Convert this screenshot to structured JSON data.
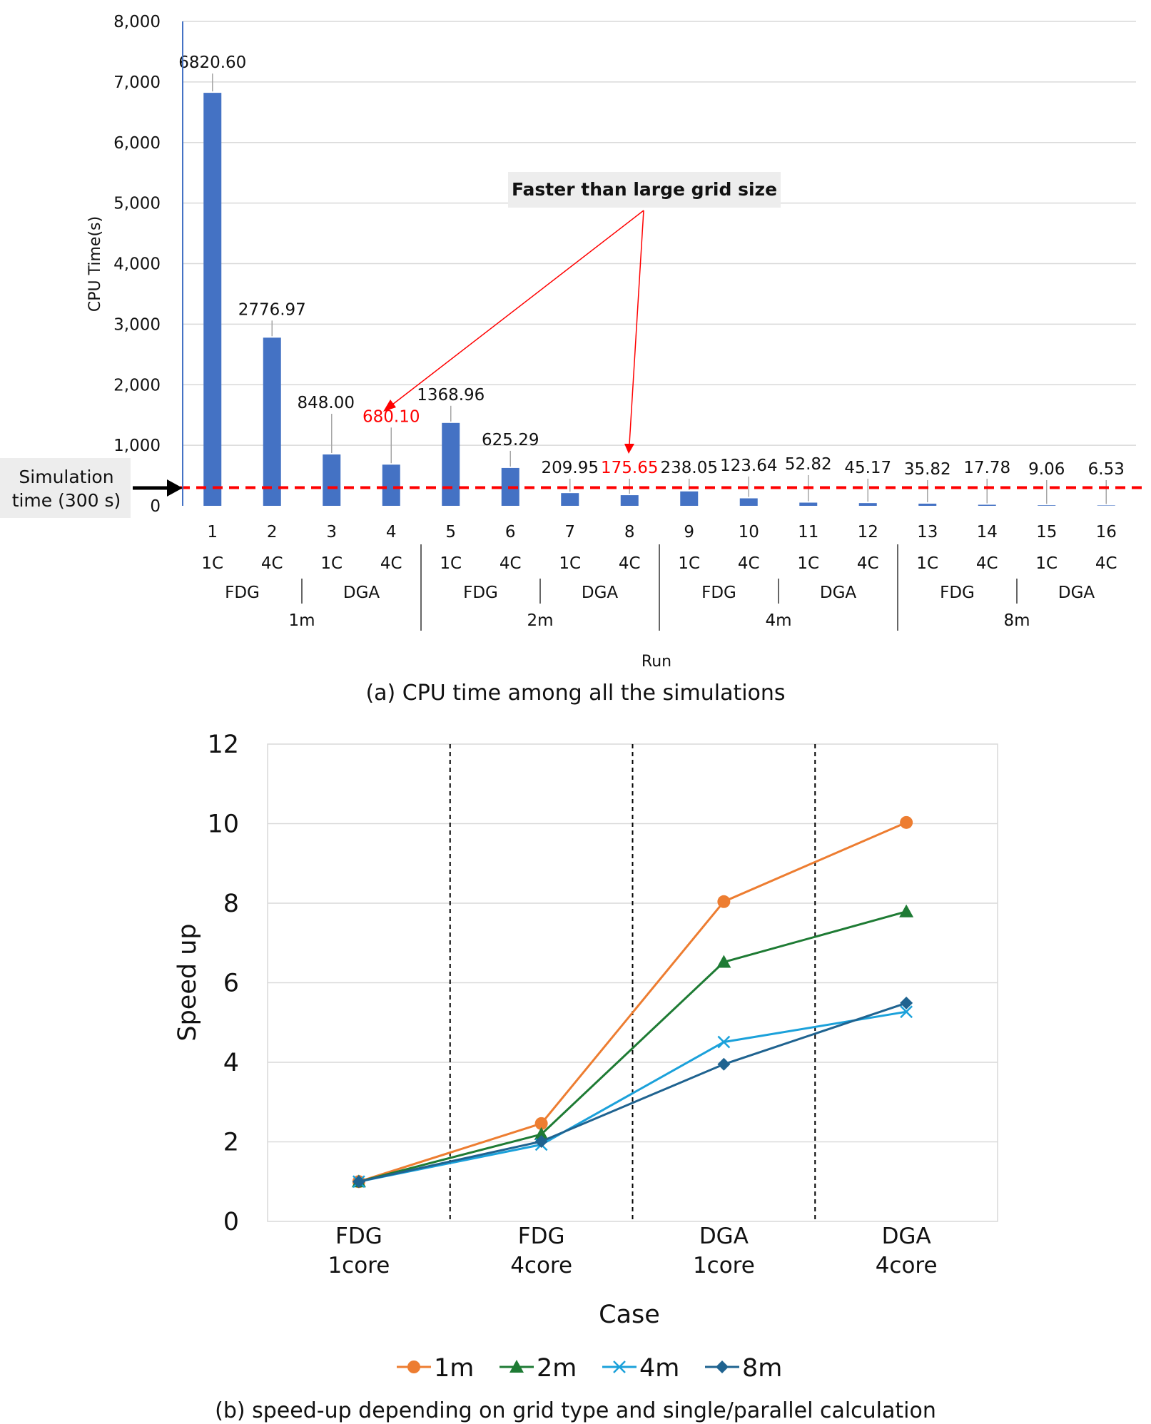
{
  "chart_data": [
    {
      "type": "bar",
      "title": "(a) CPU time among all the simulations",
      "xlabel": "Run",
      "ylabel": "CPU Time(s)",
      "ylim": [
        0,
        8000
      ],
      "yticks": [
        "0",
        "1,000",
        "2,000",
        "3,000",
        "4,000",
        "5,000",
        "6,000",
        "7,000",
        "8,000"
      ],
      "gridlines": true,
      "categories": [
        "1",
        "2",
        "3",
        "4",
        "5",
        "6",
        "7",
        "8",
        "9",
        "10",
        "11",
        "12",
        "13",
        "14",
        "15",
        "16"
      ],
      "cores": [
        "1C",
        "4C",
        "1C",
        "4C",
        "1C",
        "4C",
        "1C",
        "4C",
        "1C",
        "4C",
        "1C",
        "4C",
        "1C",
        "4C",
        "1C",
        "4C"
      ],
      "grid_types": [
        "FDG",
        "DGA",
        "FDG",
        "DGA",
        "FDG",
        "DGA",
        "FDG",
        "DGA"
      ],
      "grid_sizes": [
        "1m",
        "2m",
        "4m",
        "8m"
      ],
      "values": [
        6820.6,
        2776.97,
        848.0,
        680.1,
        1368.96,
        625.29,
        209.95,
        175.65,
        238.05,
        123.64,
        52.82,
        45.17,
        35.82,
        17.78,
        9.06,
        6.53
      ],
      "value_labels": [
        "6820.60",
        "2776.97",
        "848.00",
        "680.10",
        "1368.96",
        "625.29",
        "209.95",
        "175.65",
        "238.05",
        "123.64",
        "52.82",
        "45.17",
        "35.82",
        "17.78",
        "9.06",
        "6.53"
      ],
      "highlighted_runs": [
        "4",
        "8"
      ],
      "reference_line": {
        "value": 300,
        "label_line1": "Simulation",
        "label_line2": "time (300 s)"
      },
      "annotation": "Faster than large grid size",
      "bar_color": "#4472C4",
      "highlight_color": "#FF0000"
    },
    {
      "type": "line",
      "title": "(b) speed-up depending on grid type and single/parallel calculation",
      "xlabel": "Case",
      "ylabel": "Speed up",
      "ylim": [
        0,
        12
      ],
      "yticks": [
        "0",
        "2",
        "4",
        "6",
        "8",
        "10",
        "12"
      ],
      "gridlines": true,
      "categories": [
        {
          "line1": "FDG",
          "line2": "1core"
        },
        {
          "line1": "FDG",
          "line2": "4core"
        },
        {
          "line1": "DGA",
          "line2": "1core"
        },
        {
          "line1": "DGA",
          "line2": "4core"
        }
      ],
      "legend_position": "bottom",
      "series": [
        {
          "name": "1m",
          "values": [
            1.0,
            2.46,
            8.04,
            10.03
          ],
          "color": "#ED7D31",
          "marker": "circle"
        },
        {
          "name": "2m",
          "values": [
            1.0,
            2.19,
            6.52,
            7.79
          ],
          "color": "#1E7B34",
          "marker": "triangle"
        },
        {
          "name": "4m",
          "values": [
            1.0,
            1.93,
            4.51,
            5.27
          ],
          "color": "#1BA1DA",
          "marker": "x"
        },
        {
          "name": "8m",
          "values": [
            1.0,
            2.01,
            3.95,
            5.49
          ],
          "color": "#1F6390",
          "marker": "diamond"
        }
      ]
    }
  ]
}
